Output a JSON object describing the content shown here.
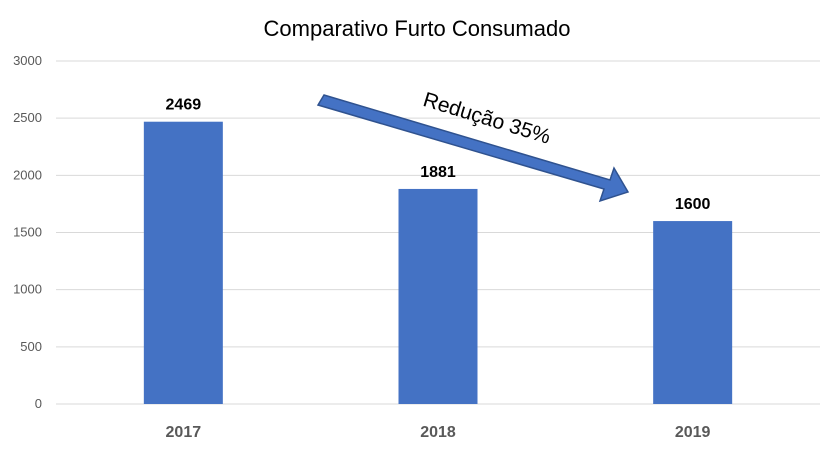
{
  "chart_data": {
    "type": "bar",
    "title": "Comparativo Furto Consumado",
    "categories": [
      "2017",
      "2018",
      "2019"
    ],
    "values": [
      2469,
      1881,
      1600
    ],
    "ylim": [
      0,
      3000
    ],
    "yticks": [
      0,
      500,
      1000,
      1500,
      2000,
      2500,
      3000
    ],
    "grid": true,
    "annotation": "Redução 35%",
    "colors": {
      "bar": "#4472C4",
      "arrow": "#4472C4",
      "arrow_stroke": "#2F528F",
      "grid": "#D9D9D9"
    }
  }
}
